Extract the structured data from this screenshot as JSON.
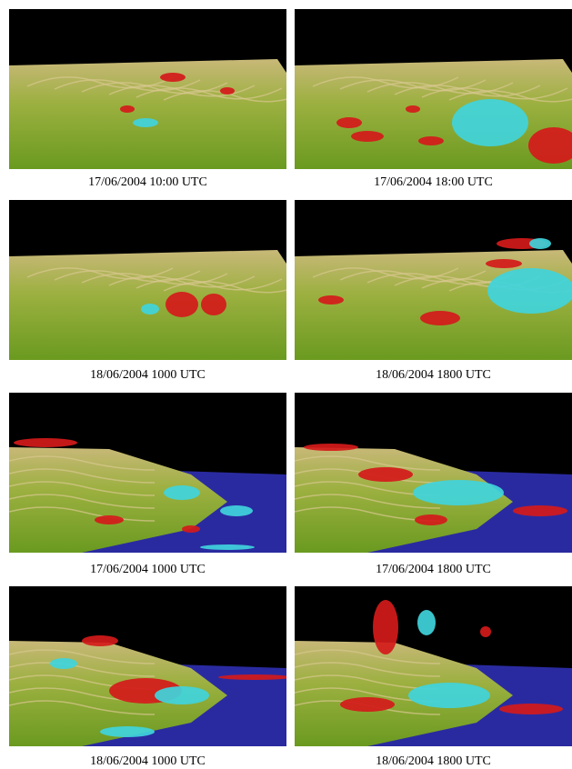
{
  "panels": [
    {
      "caption": "17/06/2004 10:00 UTC"
    },
    {
      "caption": "17/06/2004 18:00 UTC"
    },
    {
      "caption": "18/06/2004 1000 UTC"
    },
    {
      "caption": "18/06/2004 1800 UTC"
    },
    {
      "caption": "17/06/2004 1000 UTC"
    },
    {
      "caption": "17/06/2004 1800 UTC"
    },
    {
      "caption": "18/06/2004 1000 UTC"
    },
    {
      "caption": "18/06/2004 1800 UTC"
    }
  ]
}
